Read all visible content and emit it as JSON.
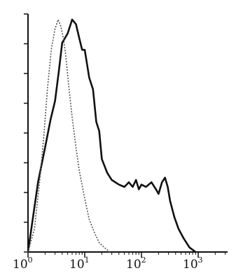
{
  "chart_data": {
    "type": "line",
    "xscale": "log",
    "xlim": [
      1,
      1000
    ],
    "ylim": [
      0,
      1
    ],
    "grid": false,
    "xticks": [
      {
        "value": 1,
        "base": "10",
        "exp": "0"
      },
      {
        "value": 10,
        "base": "10",
        "exp": "1"
      },
      {
        "value": 100,
        "base": "10",
        "exp": "2"
      },
      {
        "value": 1000,
        "base": "10",
        "exp": "3"
      }
    ],
    "y_tick_count": 8,
    "series": [
      {
        "style": "solid",
        "color": "#111111",
        "points": [
          [
            1.0,
            0.0
          ],
          [
            1.5,
            0.3
          ],
          [
            2.0,
            0.45
          ],
          [
            2.5,
            0.57
          ],
          [
            3.0,
            0.65
          ],
          [
            3.5,
            0.78
          ],
          [
            4.0,
            0.9
          ],
          [
            5.0,
            0.94
          ],
          [
            6.0,
            1.0
          ],
          [
            7.0,
            0.98
          ],
          [
            8.0,
            0.92
          ],
          [
            9.0,
            0.87
          ],
          [
            10.0,
            0.87
          ],
          [
            12.0,
            0.75
          ],
          [
            14.0,
            0.7
          ],
          [
            16.0,
            0.56
          ],
          [
            18.0,
            0.52
          ],
          [
            20.0,
            0.4
          ],
          [
            25.0,
            0.34
          ],
          [
            30.0,
            0.31
          ],
          [
            40.0,
            0.29
          ],
          [
            50.0,
            0.28
          ],
          [
            60.0,
            0.3
          ],
          [
            70.0,
            0.28
          ],
          [
            80.0,
            0.31
          ],
          [
            90.0,
            0.27
          ],
          [
            100.0,
            0.29
          ],
          [
            120.0,
            0.28
          ],
          [
            150.0,
            0.3
          ],
          [
            180.0,
            0.27
          ],
          [
            200.0,
            0.25
          ],
          [
            230.0,
            0.3
          ],
          [
            260.0,
            0.32
          ],
          [
            290.0,
            0.28
          ],
          [
            320.0,
            0.22
          ],
          [
            380.0,
            0.15
          ],
          [
            450.0,
            0.1
          ],
          [
            550.0,
            0.06
          ],
          [
            700.0,
            0.02
          ],
          [
            900.0,
            0.0
          ]
        ]
      },
      {
        "style": "dotted",
        "color": "#555555",
        "points": [
          [
            1.0,
            0.0
          ],
          [
            1.3,
            0.1
          ],
          [
            1.6,
            0.3
          ],
          [
            1.9,
            0.5
          ],
          [
            2.2,
            0.7
          ],
          [
            2.6,
            0.88
          ],
          [
            3.0,
            0.96
          ],
          [
            3.4,
            1.0
          ],
          [
            3.8,
            0.97
          ],
          [
            4.2,
            0.92
          ],
          [
            4.6,
            0.85
          ],
          [
            5.2,
            0.72
          ],
          [
            6.0,
            0.58
          ],
          [
            7.0,
            0.45
          ],
          [
            8.0,
            0.35
          ],
          [
            10.0,
            0.23
          ],
          [
            12.0,
            0.14
          ],
          [
            15.0,
            0.08
          ],
          [
            18.0,
            0.04
          ],
          [
            22.0,
            0.02
          ],
          [
            28.0,
            0.0
          ]
        ]
      }
    ]
  }
}
